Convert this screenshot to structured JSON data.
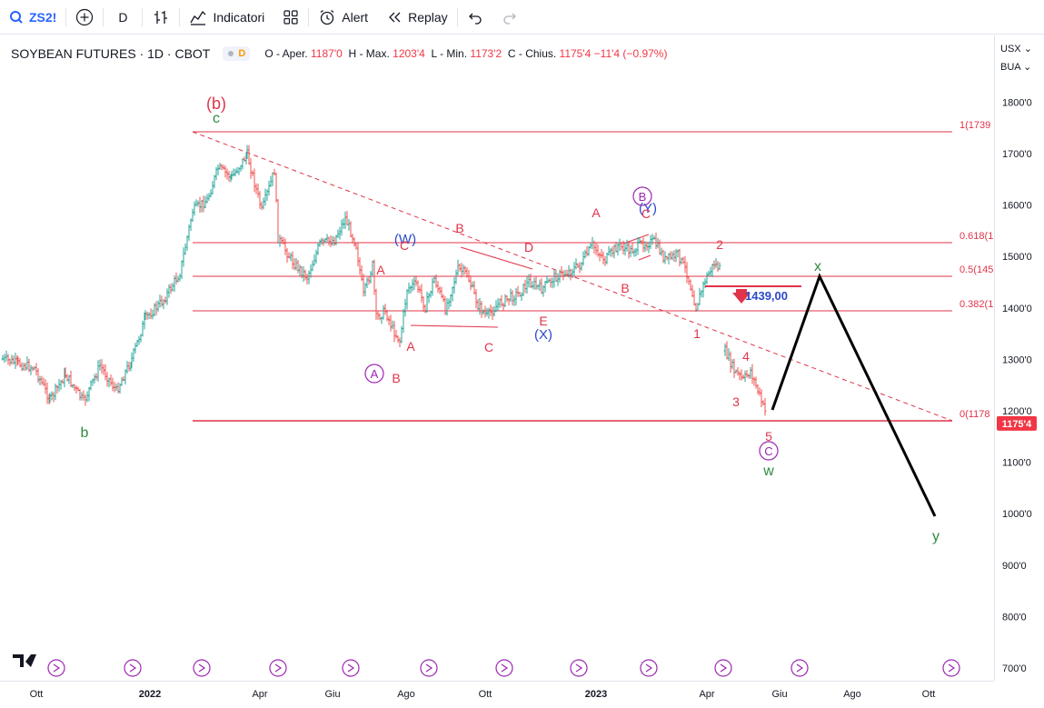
{
  "toolbar": {
    "symbol": "ZS2!",
    "interval": "D",
    "indicators_label": "Indicatori",
    "alert_label": "Alert",
    "replay_label": "Replay"
  },
  "legend": {
    "title": "SOYBEAN FUTURES · 1D · CBOT",
    "badge": "D",
    "o_label": "O - Aper.",
    "o_val": "1187'0",
    "h_label": "H - Max.",
    "h_val": "1203'4",
    "l_label": "L - Min.",
    "l_val": "1173'2",
    "c_label": "C - Chius.",
    "c_val": "1175'4",
    "change": "−11'4 (−0.97%)"
  },
  "price_scale": {
    "currency": "USX",
    "unit": "BUA",
    "current_price": "1175'4",
    "ticks": [
      {
        "label": "1800'0",
        "v": 1800
      },
      {
        "label": "1700'0",
        "v": 1700
      },
      {
        "label": "1600'0",
        "v": 1600
      },
      {
        "label": "1500'0",
        "v": 1500
      },
      {
        "label": "1400'0",
        "v": 1400
      },
      {
        "label": "1300'0",
        "v": 1300
      },
      {
        "label": "1200'0",
        "v": 1200
      },
      {
        "label": "1100'0",
        "v": 1100
      },
      {
        "label": "1000'0",
        "v": 1000
      },
      {
        "label": "900'0",
        "v": 900
      },
      {
        "label": "800'0",
        "v": 800
      },
      {
        "label": "700'0",
        "v": 700
      }
    ]
  },
  "time_scale": {
    "ticks": [
      {
        "label": "Ott",
        "x": 40,
        "bold": false
      },
      {
        "label": "2022",
        "x": 165,
        "bold": true
      },
      {
        "label": "Apr",
        "x": 286,
        "bold": false
      },
      {
        "label": "Giu",
        "x": 366,
        "bold": false
      },
      {
        "label": "Ago",
        "x": 447,
        "bold": false
      },
      {
        "label": "Ott",
        "x": 534,
        "bold": false
      },
      {
        "label": "2023",
        "x": 656,
        "bold": true
      },
      {
        "label": "Apr",
        "x": 778,
        "bold": false
      },
      {
        "label": "Giu",
        "x": 858,
        "bold": false
      },
      {
        "label": "Ago",
        "x": 938,
        "bold": false
      },
      {
        "label": "Ott",
        "x": 1022,
        "bold": false
      }
    ]
  },
  "chart_data": {
    "type": "ohlc",
    "fib_levels": [
      {
        "label": "1(1739",
        "v": 1739
      },
      {
        "label": "0.618(1",
        "v": 1526
      },
      {
        "label": "0.5(145",
        "v": 1460
      },
      {
        "label": "0.382(1",
        "v": 1394
      },
      {
        "label": "0(1178",
        "v": 1178
      }
    ],
    "horizontal_ray_label": "1439,00",
    "wave_labels": [
      {
        "text": "(b)",
        "color": "#e0344a"
      },
      {
        "text": "c",
        "color": "#2e8b3e"
      },
      {
        "text": "b",
        "color": "#2e8b3e"
      },
      {
        "text": "A",
        "color": "#e0344a"
      },
      {
        "text": "B",
        "color": "#e0344a"
      },
      {
        "text": "C",
        "color": "#e0344a"
      },
      {
        "text": "D",
        "color": "#e0344a"
      },
      {
        "text": "E",
        "color": "#e0344a"
      },
      {
        "text": "(W)",
        "color": "#2b49c9"
      },
      {
        "text": "(X)",
        "color": "#2b49c9"
      },
      {
        "text": "(Y)",
        "color": "#2b49c9"
      },
      {
        "text": "A",
        "color": "#9c27b0"
      },
      {
        "text": "B",
        "color": "#9c27b0"
      },
      {
        "text": "C",
        "color": "#9c27b0"
      },
      {
        "text": "1",
        "color": "#e0344a"
      },
      {
        "text": "2",
        "color": "#e0344a"
      },
      {
        "text": "3",
        "color": "#e0344a"
      },
      {
        "text": "4",
        "color": "#e0344a"
      },
      {
        "text": "5",
        "color": "#e0344a"
      },
      {
        "text": "w",
        "color": "#2e8b3e"
      },
      {
        "text": "x",
        "color": "#2e8b3e"
      },
      {
        "text": "y",
        "color": "#2e8b3e"
      }
    ],
    "projection": [
      {
        "t": "May 2023",
        "v": 1200
      },
      {
        "t": "Jul 2023",
        "v": 1460
      },
      {
        "t": "Oct 2023",
        "v": 1000
      }
    ]
  },
  "colors": {
    "up": "#26a69a",
    "down": "#ef5350",
    "fib_line": "#e0344a",
    "accent": "#2962ff"
  }
}
